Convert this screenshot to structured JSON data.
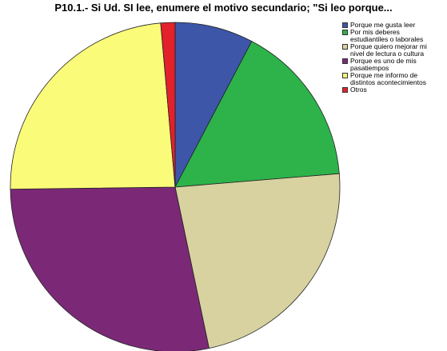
{
  "chart_data": {
    "type": "pie",
    "title": "P10.1.- Si Ud. SI lee, enumere el motivo secundario; \"Si leo porque...",
    "slices": [
      {
        "label": "Porque me gusta leer",
        "value": 7.7,
        "color": "#3d56a8"
      },
      {
        "label": "Por mis deberes estudiantiles o laborales",
        "value": 16.0,
        "color": "#2db34a"
      },
      {
        "label": "Porque quiero mejorar mi nivel de lectura o cultura",
        "value": 23.0,
        "color": "#d7d2a0"
      },
      {
        "label": "Porque es uno de mis pasatiempos",
        "value": 28.1,
        "color": "#7b2977"
      },
      {
        "label": "Porque me informo de distintos acontecimientos",
        "value": 23.8,
        "color": "#fbfb7a"
      },
      {
        "label": "Otros",
        "value": 1.4,
        "color": "#e3212b"
      }
    ],
    "legend_position": "top-right",
    "start_angle": "top",
    "direction": "clockwise"
  },
  "legend": {
    "lines": [
      [
        "Porque me gusta leer"
      ],
      [
        "Por mis deberes",
        "estudiantiles o laborales"
      ],
      [
        "Porque quiero mejorar mi",
        "nivel de lectura o cultura"
      ],
      [
        "Porque es uno de mis",
        "pasatiempos"
      ],
      [
        "Porque me informo de",
        "distintos acontecimientos"
      ],
      [
        "Otros"
      ]
    ]
  }
}
